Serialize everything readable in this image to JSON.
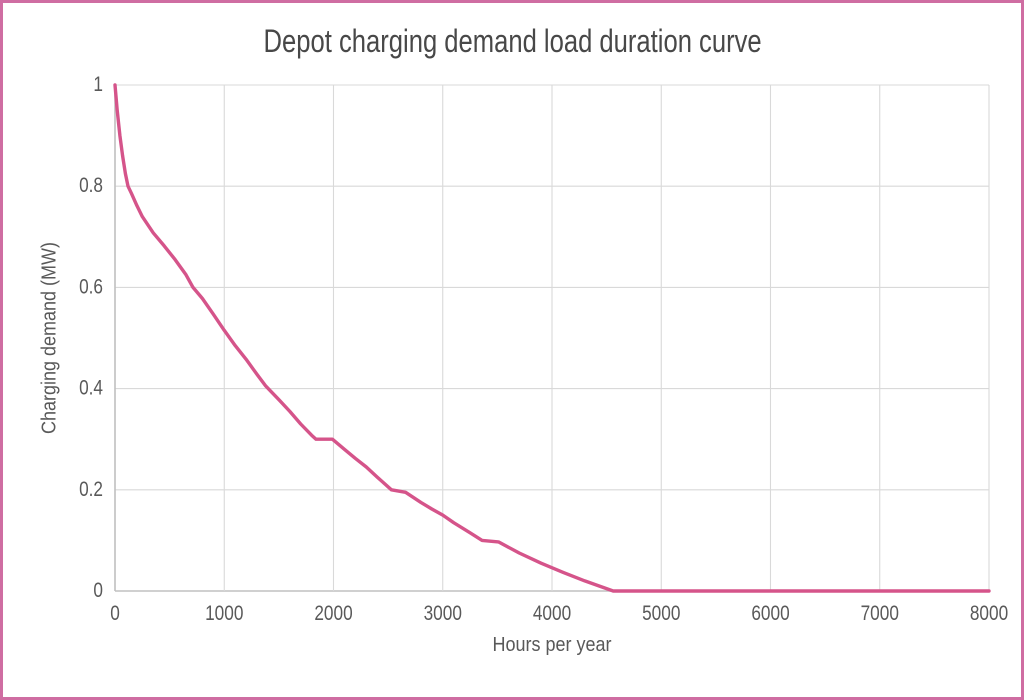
{
  "chart_data": {
    "type": "line",
    "title": "Depot charging demand load duration curve",
    "xlabel": "Hours per year",
    "ylabel": "Charging demand (MW)",
    "xlim": [
      0,
      8000
    ],
    "ylim": [
      0,
      1
    ],
    "grid": true,
    "legend": "none",
    "x_ticks": [
      0,
      1000,
      2000,
      3000,
      4000,
      5000,
      6000,
      7000,
      8000
    ],
    "x_tick_labels": [
      "0",
      "1000",
      "2000",
      "3000",
      "4000",
      "5000",
      "6000",
      "7000",
      "8000"
    ],
    "y_ticks": [
      0,
      0.2,
      0.4,
      0.6,
      0.8,
      1
    ],
    "y_tick_labels": [
      "0",
      "0.2",
      "0.4",
      "0.6",
      "0.8",
      "1"
    ],
    "series": [
      {
        "name": "Charging demand",
        "color": "#d5548a",
        "points": [
          [
            0,
            1.0
          ],
          [
            20,
            0.95
          ],
          [
            45,
            0.9
          ],
          [
            70,
            0.86
          ],
          [
            95,
            0.825
          ],
          [
            119,
            0.8
          ],
          [
            150,
            0.786
          ],
          [
            200,
            0.762
          ],
          [
            250,
            0.74
          ],
          [
            350,
            0.708
          ],
          [
            450,
            0.682
          ],
          [
            550,
            0.655
          ],
          [
            650,
            0.625
          ],
          [
            714,
            0.6
          ],
          [
            800,
            0.578
          ],
          [
            900,
            0.547
          ],
          [
            1000,
            0.515
          ],
          [
            1100,
            0.485
          ],
          [
            1200,
            0.458
          ],
          [
            1300,
            0.428
          ],
          [
            1380,
            0.405
          ],
          [
            1500,
            0.378
          ],
          [
            1600,
            0.355
          ],
          [
            1700,
            0.33
          ],
          [
            1800,
            0.308
          ],
          [
            1840,
            0.3
          ],
          [
            1990,
            0.3
          ],
          [
            2100,
            0.28
          ],
          [
            2200,
            0.262
          ],
          [
            2300,
            0.245
          ],
          [
            2400,
            0.225
          ],
          [
            2530,
            0.2
          ],
          [
            2660,
            0.195
          ],
          [
            2800,
            0.175
          ],
          [
            2900,
            0.162
          ],
          [
            3000,
            0.15
          ],
          [
            3100,
            0.135
          ],
          [
            3250,
            0.115
          ],
          [
            3360,
            0.1
          ],
          [
            3510,
            0.097
          ],
          [
            3700,
            0.075
          ],
          [
            3900,
            0.055
          ],
          [
            4100,
            0.037
          ],
          [
            4300,
            0.02
          ],
          [
            4560,
            0.0
          ],
          [
            8000,
            0.0
          ]
        ]
      }
    ]
  },
  "colors": {
    "curve": "#d5548a",
    "page_border": "#cf6da2",
    "gridline": "#d9d9d9",
    "axis_line": "#c0c0c0",
    "tick_text": "#595959",
    "axis_title_text": "#595959",
    "title_text": "#484848",
    "background": "#ffffff"
  }
}
